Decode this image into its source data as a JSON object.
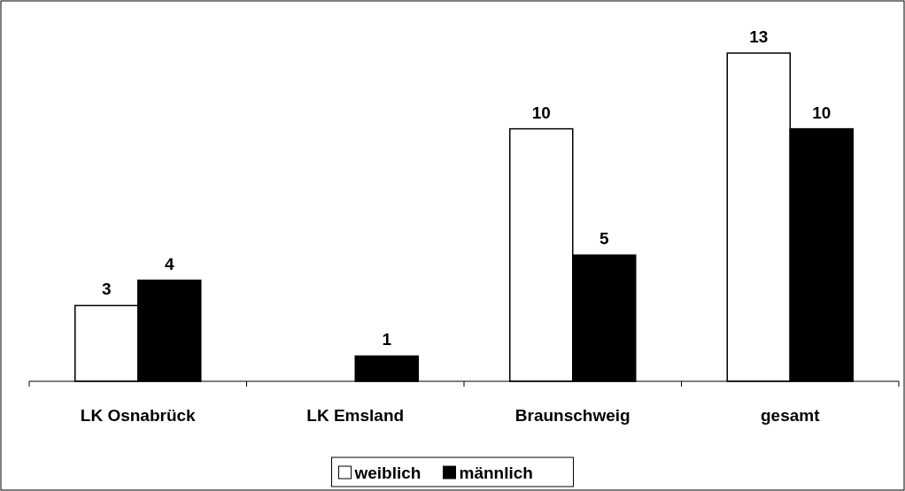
{
  "chart_data": {
    "type": "bar",
    "categories": [
      "LK Osnabrück",
      "LK Emsland",
      "Braunschweig",
      "gesamt"
    ],
    "series": [
      {
        "name": "weiblich",
        "color": "#ffffff",
        "values": [
          3,
          0,
          10,
          13
        ],
        "value_labels": [
          "3",
          null,
          "10",
          "13"
        ]
      },
      {
        "name": "männlich",
        "color": "#000000",
        "values": [
          4,
          1,
          5,
          10
        ],
        "value_labels": [
          "4",
          "1",
          "5",
          "10"
        ]
      }
    ],
    "legend": "bottom"
  }
}
